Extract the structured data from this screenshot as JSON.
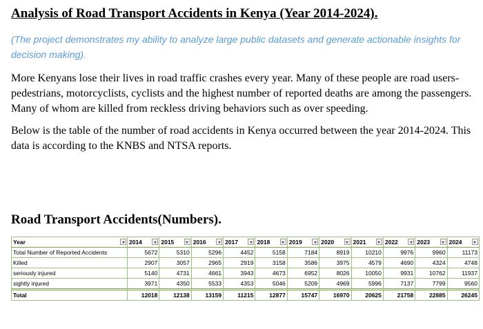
{
  "header": {
    "title": "Analysis of Road Transport Accidents in Kenya (Year 2014-2024).",
    "subtitle": "(The project demonstrates my ability to analyze large public datasets and generate actionable insights for decision making)."
  },
  "paragraphs": [
    "More Kenyans lose their lives in road traffic crashes every year. Many of these people are road users-pedestrians, motorcyclists, cyclists and the highest number of reported deaths are among the passengers. Many of whom are killed from reckless driving behaviors such as over speeding.",
    "Below is the table of the number of road accidents in Kenya occurred between the year 2014-2024. This data is according to the KNBS and NTSA reports."
  ],
  "table": {
    "title": "Road Transport Accidents(Numbers).",
    "header": [
      "Year",
      "2014",
      "2015",
      "2016",
      "2017",
      "2018",
      "2019",
      "2020",
      "2021",
      "2022",
      "2023",
      "2024"
    ],
    "rows": [
      [
        "Total Number of Reported Accidents",
        5672,
        5310,
        5296,
        4452,
        5158,
        7184,
        8919,
        10210,
        9976,
        9960,
        11173
      ],
      [
        "Killed",
        2907,
        3057,
        2965,
        2919,
        3158,
        3586,
        3975,
        4579,
        4690,
        4324,
        4748
      ],
      [
        "seriously injured",
        5140,
        4731,
        4661,
        3943,
        4673,
        6952,
        8026,
        10050,
        9931,
        10762,
        11937
      ],
      [
        "sightly injured",
        3971,
        4350,
        5533,
        4353,
        5046,
        5209,
        4969,
        5996,
        7137,
        7799,
        9560
      ],
      [
        "Total",
        12018,
        12138,
        13159,
        11215,
        12877,
        15747,
        16970,
        20625,
        21758,
        22885,
        26245
      ]
    ]
  }
}
